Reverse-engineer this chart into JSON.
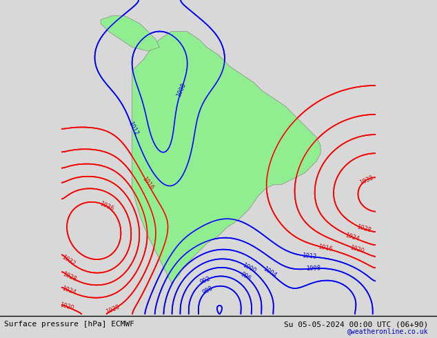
{
  "title_left": "Surface pressure [hPa] ECMWF",
  "title_right": "Su 05-05-2024 00:00 UTC (06+90)",
  "watermark": "@weatheronline.co.uk",
  "bg_color": "#d8d8d8",
  "land_color": "#90ee90",
  "water_color": "#d8d8d8",
  "fig_width": 6.34,
  "fig_height": 4.9,
  "dpi": 100
}
